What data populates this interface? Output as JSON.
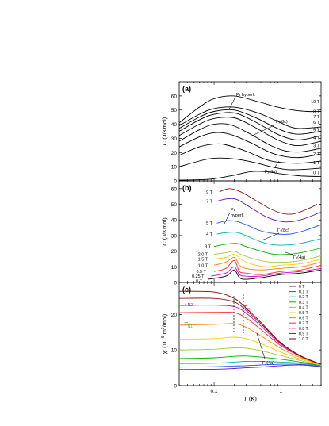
{
  "figure": {
    "x_label_italic": "T",
    "x_label_rest": " (K)",
    "x_ticks": [
      "0.1",
      "1"
    ],
    "x_tick_values": [
      0.1,
      1
    ],
    "x_range": [
      0.03,
      4
    ],
    "x_scale": "log"
  },
  "chart_data": [
    {
      "panel": "(a)",
      "type": "line",
      "ylabel_italic": "C",
      "ylabel_rest": " (J/Kmol)",
      "ylim": [
        0,
        70
      ],
      "y_ticks": [
        "0",
        "10",
        "20",
        "30",
        "40",
        "50",
        "60"
      ],
      "y_tick_values": [
        0,
        10,
        20,
        30,
        40,
        50,
        60
      ],
      "curve_labels": [
        "10 T",
        "8 T",
        "7 T",
        "6 T",
        "5 T",
        "4 T",
        "3 T",
        "2 T",
        "1 T",
        "0 T"
      ],
      "annotations": [
        "Pr hyperf.",
        "Γ₃(8c)",
        "Γ₃(4a)"
      ],
      "series": [
        {
          "name": "0 T",
          "x": [
            0.03,
            0.06,
            0.1,
            0.2,
            0.35,
            0.6,
            1,
            2,
            4
          ],
          "y": [
            0.5,
            0.8,
            1.5,
            4,
            6.5,
            6.5,
            5,
            3.5,
            3
          ]
        },
        {
          "name": "1 T",
          "x": [
            0.03,
            0.06,
            0.1,
            0.2,
            0.4,
            0.7,
            1.2,
            2,
            4
          ],
          "y": [
            10,
            14,
            16,
            15.5,
            13,
            10,
            8,
            8,
            9
          ]
        },
        {
          "name": "2 T",
          "x": [
            0.03,
            0.06,
            0.1,
            0.15,
            0.3,
            0.6,
            1,
            2,
            4
          ],
          "y": [
            18,
            24,
            26,
            25.5,
            21,
            15,
            13,
            12.5,
            14
          ]
        },
        {
          "name": "3 T",
          "x": [
            0.03,
            0.06,
            0.1,
            0.17,
            0.35,
            0.7,
            1.2,
            2,
            4
          ],
          "y": [
            24,
            31,
            34,
            33,
            27,
            20,
            17,
            16.5,
            19
          ]
        },
        {
          "name": "4 T",
          "x": [
            0.03,
            0.06,
            0.1,
            0.18,
            0.35,
            0.7,
            1.2,
            2,
            4
          ],
          "y": [
            28,
            36,
            40,
            39.5,
            33,
            25,
            21,
            20.5,
            23
          ]
        },
        {
          "name": "5 T",
          "x": [
            0.03,
            0.06,
            0.1,
            0.2,
            0.4,
            0.8,
            1.3,
            2,
            4
          ],
          "y": [
            32,
            40,
            44,
            44.5,
            38,
            30,
            26,
            25,
            28
          ]
        },
        {
          "name": "6 T",
          "x": [
            0.03,
            0.06,
            0.1,
            0.2,
            0.4,
            0.8,
            1.3,
            2,
            4
          ],
          "y": [
            35,
            43,
            47,
            48,
            42,
            34,
            30,
            29,
            32
          ]
        },
        {
          "name": "7 T",
          "x": [
            0.03,
            0.06,
            0.1,
            0.2,
            0.4,
            0.8,
            1.3,
            2,
            4
          ],
          "y": [
            37,
            45,
            49,
            50,
            45,
            38,
            34,
            33,
            35
          ]
        },
        {
          "name": "8 T",
          "x": [
            0.03,
            0.06,
            0.1,
            0.2,
            0.45,
            0.9,
            1.4,
            2,
            4
          ],
          "y": [
            39,
            47,
            51,
            52,
            48,
            42,
            38,
            37,
            38
          ]
        },
        {
          "name": "10 T",
          "x": [
            0.03,
            0.06,
            0.1,
            0.2,
            0.45,
            0.9,
            1.5,
            2.5,
            4
          ],
          "y": [
            41,
            52,
            58,
            60,
            56,
            52,
            50,
            49,
            49
          ]
        }
      ]
    },
    {
      "panel": "(b)",
      "type": "line",
      "ylabel_italic": "C",
      "ylabel_rest": " (J/Kmol)",
      "ylim": [
        0,
        65
      ],
      "y_ticks": [
        "0",
        "10",
        "20",
        "30",
        "40",
        "50",
        "60"
      ],
      "y_tick_values": [
        0,
        10,
        20,
        30,
        40,
        50,
        60
      ],
      "curve_labels": [
        "9 T",
        "7 T",
        "5 T",
        "4 T",
        "3 T",
        "2.0 T",
        "1.5 T",
        "1.0 T",
        "0.5 T",
        "0.25 T",
        "0 T"
      ],
      "annotations": [
        "Pr",
        "hyperf.",
        "Γ₃(8c)",
        "Γ₃(4a)"
      ],
      "series": [
        {
          "name": "0 T",
          "color": "#000000",
          "x": [
            0.08,
            0.15,
            0.2,
            0.24,
            0.3,
            0.5,
            1,
            2,
            4
          ],
          "y": [
            2,
            4,
            8,
            3,
            2,
            3,
            5,
            6,
            8
          ]
        },
        {
          "name": "0.25 T",
          "color": "#d400d4",
          "x": [
            0.09,
            0.15,
            0.2,
            0.24,
            0.3,
            0.5,
            1,
            2,
            4
          ],
          "y": [
            4,
            6,
            10,
            5,
            4,
            4,
            6,
            7,
            9
          ]
        },
        {
          "name": "0.5 T",
          "color": "#ff2a2a",
          "x": [
            0.1,
            0.15,
            0.2,
            0.24,
            0.3,
            0.5,
            1,
            2,
            4
          ],
          "y": [
            7,
            9,
            14,
            7,
            6,
            5,
            7,
            8,
            11
          ]
        },
        {
          "name": "1.0 T",
          "color": "#ff7f00",
          "x": [
            0.1,
            0.15,
            0.2,
            0.24,
            0.3,
            0.5,
            1,
            2,
            4
          ],
          "y": [
            11,
            13,
            16,
            11,
            9,
            8,
            9,
            10,
            13
          ]
        },
        {
          "name": "1.5 T",
          "color": "#ffcc00",
          "x": [
            0.1,
            0.15,
            0.2,
            0.25,
            0.35,
            0.6,
            1,
            2,
            4
          ],
          "y": [
            15,
            16,
            18,
            15,
            12,
            10,
            11,
            12,
            15
          ]
        },
        {
          "name": "2.0 T",
          "color": "#9acd32",
          "x": [
            0.1,
            0.15,
            0.2,
            0.25,
            0.4,
            0.7,
            1.2,
            2,
            4
          ],
          "y": [
            18,
            19,
            20,
            18,
            15,
            13,
            13,
            14,
            17
          ]
        },
        {
          "name": "3 T",
          "color": "#00b000",
          "x": [
            0.1,
            0.15,
            0.22,
            0.3,
            0.5,
            0.8,
            1.3,
            2,
            4
          ],
          "y": [
            23,
            24.5,
            25,
            23,
            20,
            18,
            18,
            19,
            22
          ]
        },
        {
          "name": "4 T",
          "color": "#00b0b0",
          "x": [
            0.11,
            0.16,
            0.22,
            0.3,
            0.5,
            0.8,
            1.3,
            2,
            4
          ],
          "y": [
            31,
            32,
            32,
            30,
            26,
            24,
            24,
            25,
            28
          ]
        },
        {
          "name": "5 T",
          "color": "#2a50ff",
          "x": [
            0.11,
            0.16,
            0.22,
            0.3,
            0.5,
            0.9,
            1.4,
            2.2,
            4
          ],
          "y": [
            38,
            39.5,
            39,
            37,
            33,
            31,
            31,
            33,
            37
          ]
        },
        {
          "name": "7 T",
          "color": "#6a0dad",
          "x": [
            0.11,
            0.16,
            0.22,
            0.35,
            0.6,
            1,
            1.5,
            2.3,
            4
          ],
          "y": [
            52,
            53.5,
            53,
            48,
            42,
            39,
            39,
            41,
            45
          ]
        },
        {
          "name": "9 T",
          "color": "#8b1a1a",
          "x": [
            0.12,
            0.17,
            0.25,
            0.4,
            0.7,
            1.1,
            1.6,
            2.5,
            3.5
          ],
          "y": [
            58,
            60,
            58,
            53,
            47,
            44,
            44,
            47,
            50
          ]
        }
      ]
    },
    {
      "panel": "(c)",
      "type": "line",
      "ylabel_parts": [
        "χ' (10",
        "-6",
        " m",
        "3",
        "/mol)"
      ],
      "ylim": [
        0,
        29
      ],
      "y_ticks": [
        "0",
        "10",
        "20"
      ],
      "y_tick_values": [
        0,
        10,
        20
      ],
      "legend_placement": "top-right",
      "annotations": [
        "T",
        "N2",
        "T",
        "Q",
        "T",
        "N1",
        "Γ₃(4a)"
      ],
      "series": [
        {
          "name": "0 T",
          "color": "#6a0dad",
          "x": [
            0.03,
            0.1,
            0.2,
            0.3,
            0.5,
            1,
            2,
            4
          ],
          "y": [
            4.5,
            4.6,
            4.8,
            5,
            5.2,
            5.6,
            5.8,
            5.3
          ]
        },
        {
          "name": "0.1 T",
          "color": "#2a50ff",
          "x": [
            0.03,
            0.1,
            0.2,
            0.3,
            0.5,
            1,
            2,
            4
          ],
          "y": [
            5.2,
            5.3,
            5.5,
            5.6,
            5.8,
            6,
            6,
            5.4
          ]
        },
        {
          "name": "0.2 T",
          "color": "#00b0b0",
          "x": [
            0.03,
            0.1,
            0.2,
            0.3,
            0.5,
            1,
            2,
            4
          ],
          "y": [
            6.2,
            6.3,
            6.6,
            6.8,
            6.8,
            6.6,
            6.3,
            5.5
          ]
        },
        {
          "name": "0.3 T",
          "color": "#00b000",
          "x": [
            0.03,
            0.1,
            0.2,
            0.3,
            0.5,
            1,
            2,
            4
          ],
          "y": [
            7.6,
            7.8,
            8.2,
            8.3,
            8,
            7.4,
            6.6,
            5.6
          ]
        },
        {
          "name": "0.4 T",
          "color": "#9acd32",
          "x": [
            0.03,
            0.1,
            0.2,
            0.3,
            0.5,
            1,
            2,
            4
          ],
          "y": [
            10,
            10.2,
            10.6,
            10.5,
            9.8,
            8.4,
            7,
            5.7
          ]
        },
        {
          "name": "0.5 T",
          "color": "#ffcc00",
          "x": [
            0.03,
            0.1,
            0.2,
            0.3,
            0.5,
            1,
            2,
            4
          ],
          "y": [
            13,
            13.2,
            13.6,
            13.2,
            11.8,
            9.4,
            7.4,
            5.8
          ]
        },
        {
          "name": "0.6 T",
          "color": "#ff7f00",
          "x": [
            0.03,
            0.1,
            0.2,
            0.3,
            0.5,
            1,
            2,
            4
          ],
          "y": [
            17,
            17.2,
            17.4,
            16.4,
            14,
            10.4,
            7.8,
            5.9
          ]
        },
        {
          "name": "0.7 T",
          "color": "#ff2a2a",
          "x": [
            0.03,
            0.1,
            0.2,
            0.3,
            0.5,
            1,
            2,
            4
          ],
          "y": [
            20.5,
            20.6,
            20.5,
            19,
            15.8,
            11.2,
            8.1,
            6
          ]
        },
        {
          "name": "0.8 T",
          "color": "#d400d4",
          "x": [
            0.03,
            0.1,
            0.2,
            0.3,
            0.5,
            1,
            2,
            4
          ],
          "y": [
            22.5,
            22.6,
            22.2,
            20.4,
            16.8,
            11.6,
            8.2,
            6
          ]
        },
        {
          "name": "0.9 T",
          "color": "#8b1a1a",
          "x": [
            0.03,
            0.1,
            0.2,
            0.3,
            0.5,
            1,
            2,
            4
          ],
          "y": [
            24.5,
            24.5,
            23.5,
            21.2,
            17.4,
            11.9,
            8.3,
            6
          ]
        },
        {
          "name": "1.0 T",
          "color": "#7f0000",
          "x": [
            0.03,
            0.1,
            0.2,
            0.3,
            0.5,
            1,
            2,
            4
          ],
          "y": [
            26.5,
            26.3,
            24.5,
            21.8,
            17.8,
            12,
            8.3,
            6
          ]
        }
      ]
    }
  ]
}
